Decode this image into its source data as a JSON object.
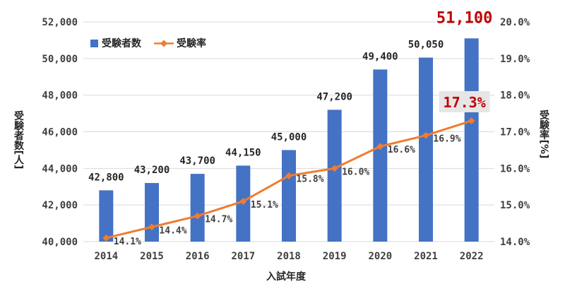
{
  "chart_data": {
    "type": "bar+line",
    "categories": [
      "2014",
      "2015",
      "2016",
      "2017",
      "2018",
      "2019",
      "2020",
      "2021",
      "2022"
    ],
    "series": [
      {
        "name": "受験者数",
        "type": "bar",
        "axis": "left",
        "values": [
          42800,
          43200,
          43700,
          44150,
          45000,
          47200,
          49400,
          50050,
          51100
        ],
        "labels": [
          "42,800",
          "43,200",
          "43,700",
          "44,150",
          "45,000",
          "47,200",
          "49,400",
          "50,050",
          "51,100"
        ]
      },
      {
        "name": "受験率",
        "type": "line",
        "axis": "right",
        "values": [
          14.1,
          14.4,
          14.7,
          15.1,
          15.8,
          16.0,
          16.6,
          16.9,
          17.3
        ],
        "labels": [
          "14.1%",
          "14.4%",
          "14.7%",
          "15.1%",
          "15.8%",
          "16.0%",
          "16.6%",
          "16.9%",
          "17.3%"
        ]
      }
    ],
    "xlabel": "入試年度",
    "ylabel": "受験者数[人]",
    "y2label": "受験率[%]",
    "ylim": [
      40000,
      52000
    ],
    "y2lim": [
      14.0,
      20.0
    ],
    "yticks": [
      "40,000",
      "42,000",
      "44,000",
      "46,000",
      "48,000",
      "50,000",
      "52,000"
    ],
    "y2ticks": [
      "14.0%",
      "15.0%",
      "16.0%",
      "17.0%",
      "18.0%",
      "19.0%",
      "20.0%"
    ],
    "grid": "horizontal",
    "legend": "top-left",
    "highlight": {
      "bar_index": 8,
      "rate_index": 8
    },
    "colors": {
      "bar": "#4472C4",
      "line": "#ED7D31",
      "highlight_text": "#C00000",
      "highlight_bg": "#E6E6E6",
      "grid": "#D9D9D9",
      "axis_text": "#404040"
    }
  }
}
